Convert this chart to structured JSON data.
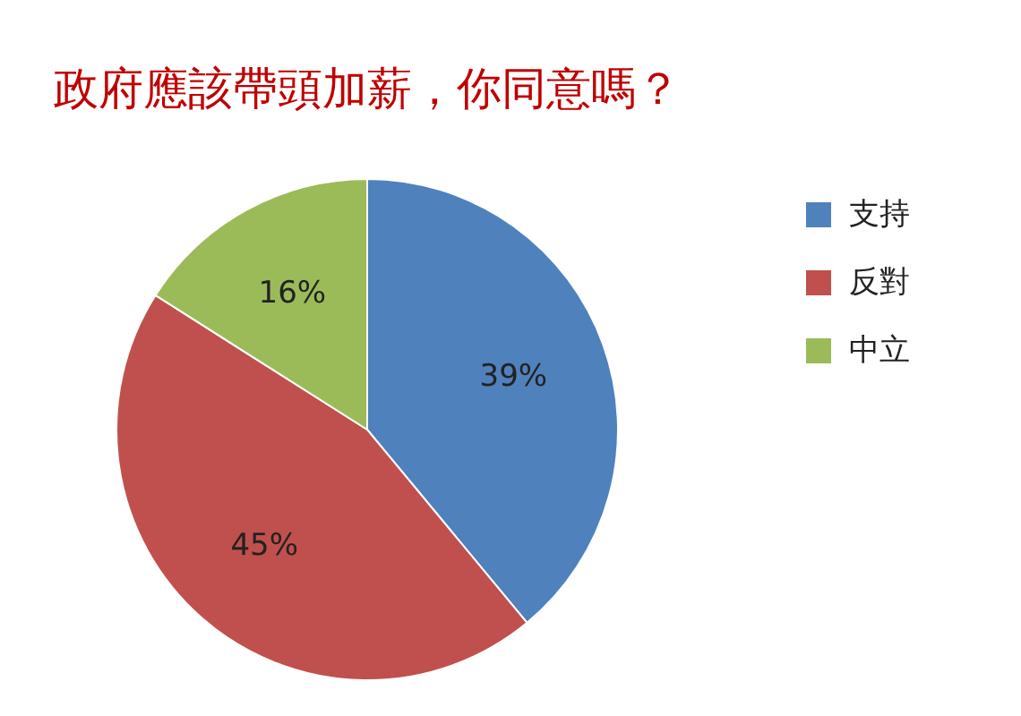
{
  "chart_data": {
    "type": "pie",
    "title": "政府應該帶頭加薪，你同意嗎？",
    "categories": [
      "支持",
      "反對",
      "中立"
    ],
    "values": [
      39,
      45,
      16
    ],
    "colors": [
      "#4f81bd",
      "#c0504d",
      "#9bbb59"
    ],
    "value_labels": [
      "39%",
      "45%",
      "16%"
    ],
    "legend": "right"
  }
}
